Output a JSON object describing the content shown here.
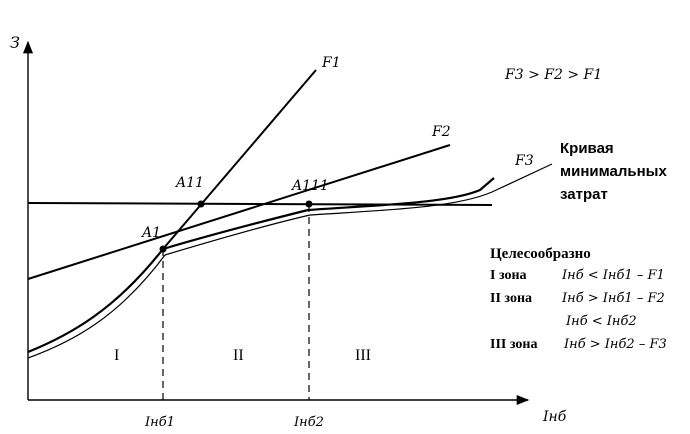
{
  "axes": {
    "y_label": "З",
    "x_label": "Iнб",
    "x_ticks": [
      "Iнб1",
      "Iнб2"
    ]
  },
  "curves": {
    "f1": "F1",
    "f2": "F2",
    "f3": "F3"
  },
  "points": {
    "a1": "A1",
    "a11": "A11",
    "a111": "A111"
  },
  "relation": "F3 > F2 > F1",
  "min_cost_curve": [
    "Кривая",
    "минимальных",
    "затрат"
  ],
  "zones": {
    "z1": "I",
    "z2": "II",
    "z3": "III"
  },
  "conditions": {
    "header": "Целесообразно",
    "rows": [
      {
        "zone": "I зона",
        "formula": "Iнб < Iнб1 – F1"
      },
      {
        "zone": "II зона",
        "formula": "Iнб > Iнб1 – F2"
      },
      {
        "zone": "",
        "formula": "Iнб < Iнб2"
      },
      {
        "zone": "III зона",
        "formula": "Iнб > Iнб2 – F3"
      }
    ]
  }
}
